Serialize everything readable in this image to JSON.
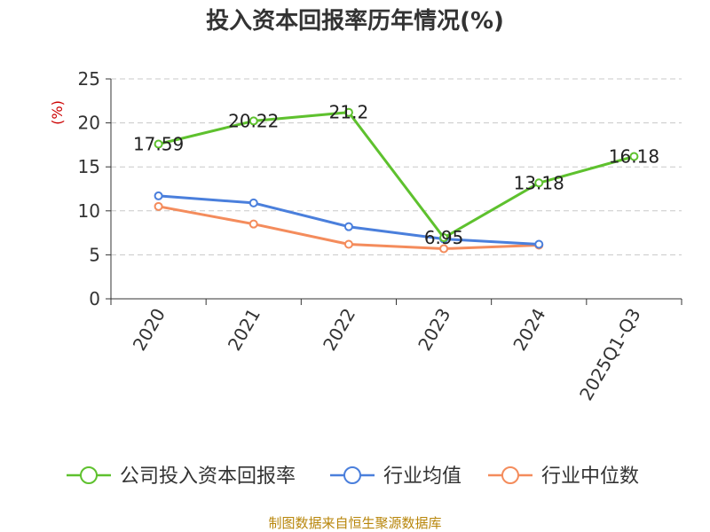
{
  "chart_data": {
    "type": "line",
    "title": "投入资本回报率历年情况(%)",
    "ylabel": "(%)",
    "xlabel": "",
    "ylim": [
      0,
      25
    ],
    "yticks": [
      0,
      5,
      10,
      15,
      20,
      25
    ],
    "grid": true,
    "legend_position": "bottom",
    "categories": [
      "2020",
      "2021",
      "2022",
      "2023",
      "2024",
      "2025Q1-Q3"
    ],
    "series": [
      {
        "name": "公司投入资本回报率",
        "color": "#5ec12e",
        "values": [
          17.59,
          20.22,
          21.2,
          6.95,
          13.18,
          16.18
        ],
        "labels": [
          "17.59",
          "20.22",
          "21.2",
          "6.95",
          "13.18",
          "16.18"
        ]
      },
      {
        "name": "行业均值",
        "color": "#4a7fdc",
        "values": [
          11.7,
          10.9,
          8.2,
          6.8,
          6.2,
          null
        ]
      },
      {
        "name": "行业中位数",
        "color": "#f48c5c",
        "values": [
          10.5,
          8.5,
          6.2,
          5.7,
          6.1,
          null
        ]
      }
    ],
    "source": "制图数据来自恒生聚源数据库"
  }
}
